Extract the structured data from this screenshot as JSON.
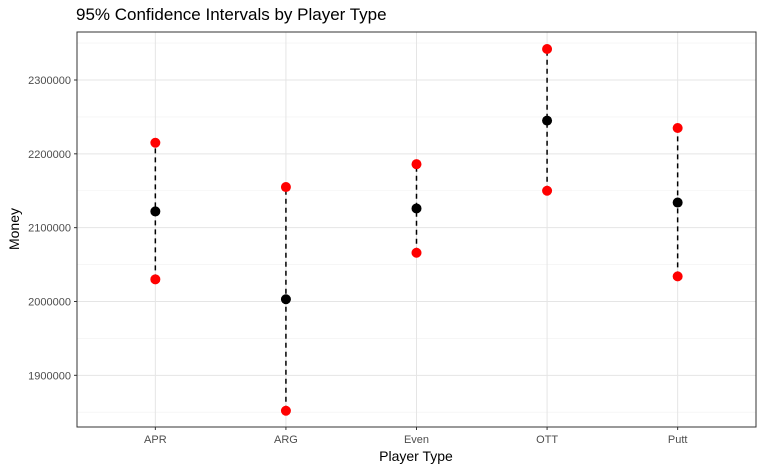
{
  "chart_data": {
    "type": "scatter",
    "title": "95% Confidence Intervals by Player Type",
    "xlabel": "Player Type",
    "ylabel": "Money",
    "categories": [
      "APR",
      "ARG",
      "Even",
      "OTT",
      "Putt"
    ],
    "y_ticks": [
      "1900000",
      "2000000",
      "2100000",
      "2200000",
      "2300000"
    ],
    "ylim": [
      1830000,
      2365000
    ],
    "grid": true,
    "series": [
      {
        "name": "",
        "role": "mean",
        "color": "#000000",
        "values": [
          2122000,
          2003000,
          2126000,
          2245000,
          2134000
        ]
      },
      {
        "name": "",
        "role": "lower",
        "color": "#ff0000",
        "values": [
          2030000,
          1852000,
          2066000,
          2150000,
          2034000
        ]
      },
      {
        "name": "",
        "role": "upper",
        "color": "#ff0000",
        "values": [
          2215000,
          2155000,
          2186000,
          2342000,
          2235000
        ]
      }
    ],
    "interval_line": "dashed"
  }
}
